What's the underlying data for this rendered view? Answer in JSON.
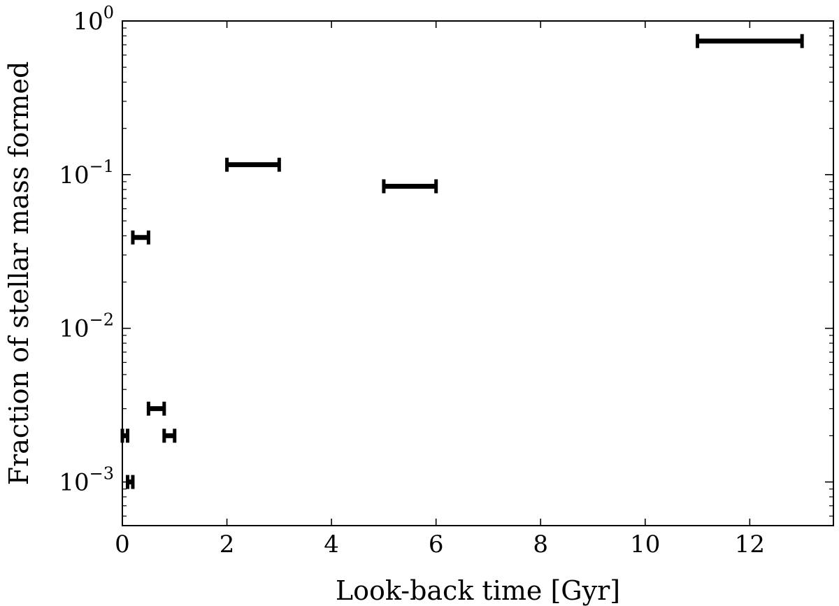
{
  "chart_data": {
    "type": "scatter",
    "title": "",
    "xlabel": "Look-back time [Gyr]",
    "ylabel": "Fraction of stellar mass formed",
    "xlim": [
      0,
      13.6
    ],
    "ylim": [
      0.00052,
      1.0
    ],
    "yscale": "log",
    "grid": false,
    "legend": "none",
    "x_ticks": [
      {
        "value": 0,
        "label": "0"
      },
      {
        "value": 2,
        "label": "2"
      },
      {
        "value": 4,
        "label": "4"
      },
      {
        "value": 6,
        "label": "6"
      },
      {
        "value": 8,
        "label": "8"
      },
      {
        "value": 10,
        "label": "10"
      },
      {
        "value": 12,
        "label": "12"
      }
    ],
    "y_ticks": [
      {
        "value": 0.001,
        "base": "10",
        "exp": "−3"
      },
      {
        "value": 0.01,
        "base": "10",
        "exp": "−2"
      },
      {
        "value": 0.1,
        "base": "10",
        "exp": "−1"
      },
      {
        "value": 1,
        "base": "10",
        "exp": "0"
      }
    ],
    "color": "#000000",
    "points": [
      {
        "x_start": 0.0,
        "x_end": 0.1,
        "y": 0.002
      },
      {
        "x_start": 0.1,
        "x_end": 0.2,
        "y": 0.001
      },
      {
        "x_start": 0.2,
        "x_end": 0.5,
        "y": 0.039
      },
      {
        "x_start": 0.5,
        "x_end": 0.8,
        "y": 0.003
      },
      {
        "x_start": 0.8,
        "x_end": 1.0,
        "y": 0.002
      },
      {
        "x_start": 2.0,
        "x_end": 3.0,
        "y": 0.116
      },
      {
        "x_start": 5.0,
        "x_end": 6.0,
        "y": 0.084
      },
      {
        "x_start": 11.0,
        "x_end": 13.0,
        "y": 0.74
      }
    ]
  }
}
